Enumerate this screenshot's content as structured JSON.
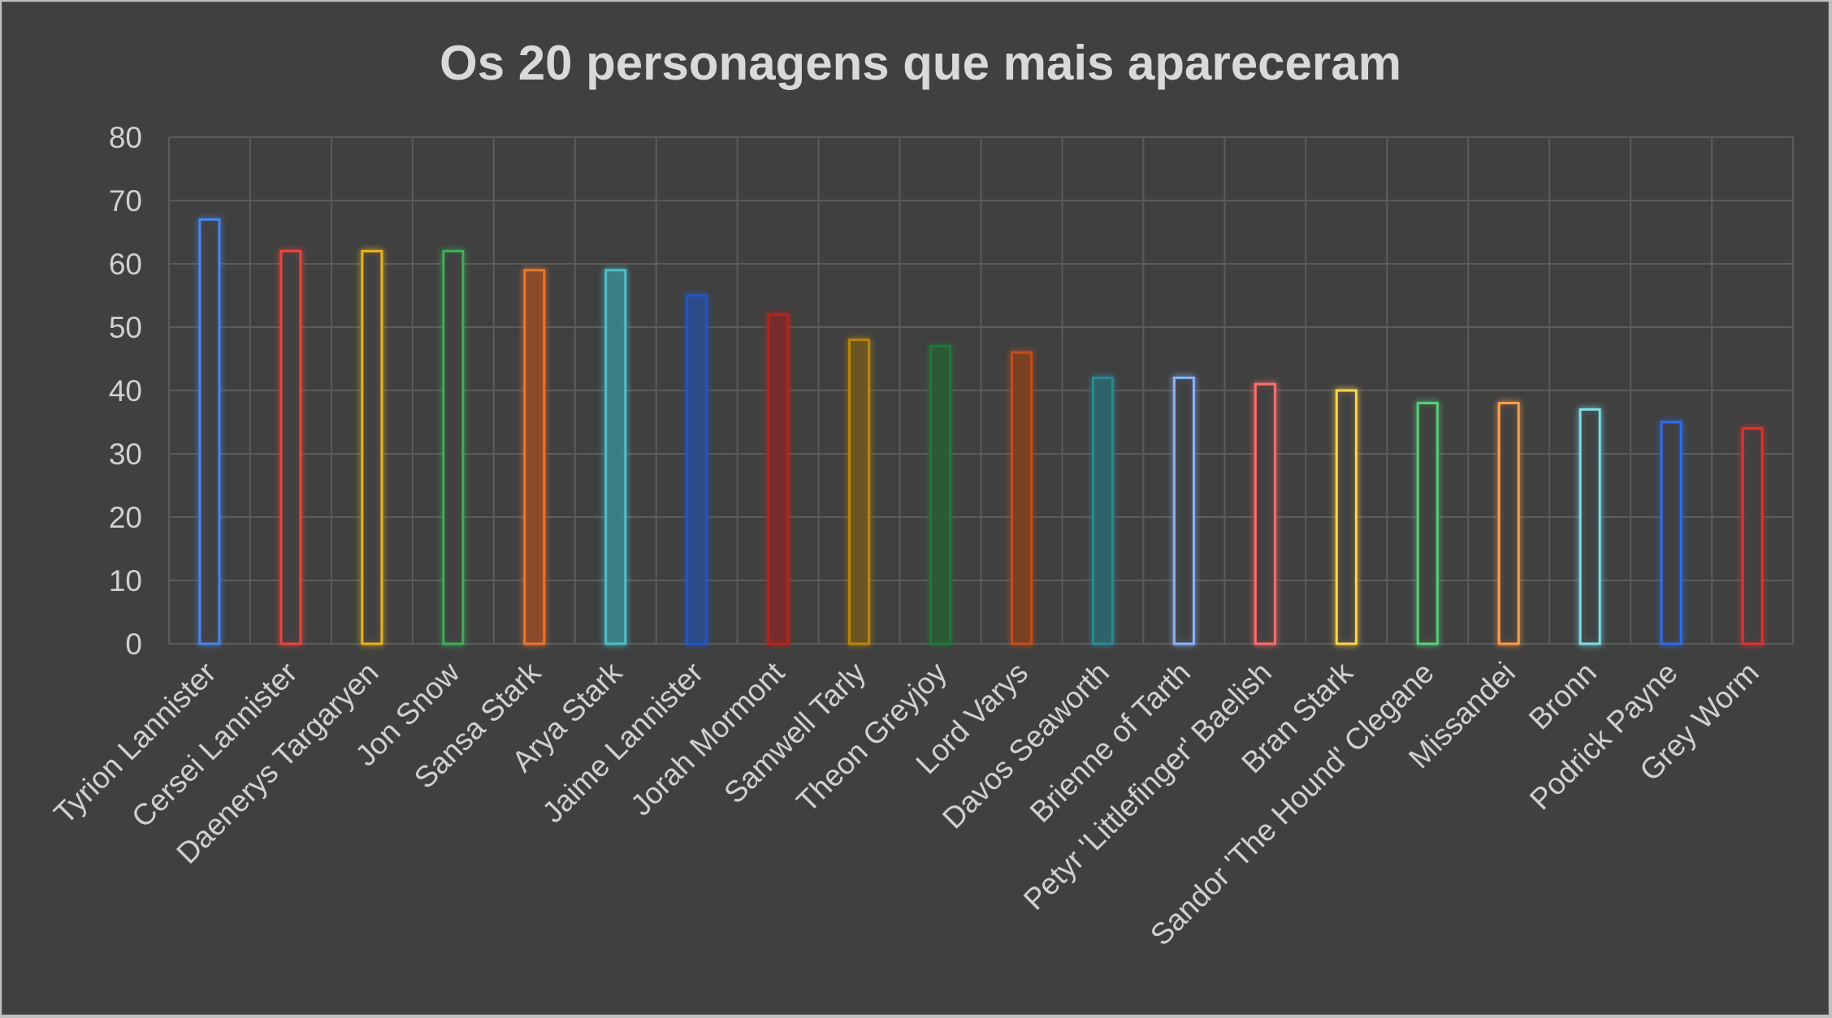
{
  "chart_data": {
    "type": "bar",
    "title": "Os 20 personagens que mais apareceram",
    "xlabel": "",
    "ylabel": "",
    "ylim": [
      0,
      80
    ],
    "yticks": [
      0,
      10,
      20,
      30,
      40,
      50,
      60,
      70,
      80
    ],
    "grid": true,
    "legend": "none",
    "categories": [
      "Tyrion Lannister",
      "Cersei Lannister",
      "Daenerys Targaryen",
      "Jon Snow",
      "Sansa Stark",
      "Arya Stark",
      "Jaime Lannister",
      "Jorah Mormont",
      "Samwell Tarly",
      "Theon Greyjoy",
      "Lord Varys",
      "Davos Seaworth",
      "Brienne of Tarth",
      "Petyr 'Littlefinger' Baelish",
      "Bran Stark",
      "Sandor 'The Hound' Clegane",
      "Missandei",
      "Bronn",
      "Podrick Payne",
      "Grey Worm"
    ],
    "values": [
      67,
      62,
      62,
      62,
      59,
      59,
      55,
      52,
      48,
      47,
      46,
      42,
      42,
      41,
      40,
      38,
      38,
      37,
      35,
      34
    ],
    "bar_colors": [
      "#4a86e8",
      "#e8463f",
      "#e8b41a",
      "#3fae5a",
      "#e8772e",
      "#4dc0c8",
      "#2457c4",
      "#b3261e",
      "#b8860b",
      "#1f7a3a",
      "#c0501f",
      "#2b8a94",
      "#8ab4f8",
      "#ff6e6e",
      "#ffd54f",
      "#57d27a",
      "#ffa04a",
      "#7fdde6",
      "#2f6ee8",
      "#e03030"
    ],
    "bar_fill_colors": [
      "#404040",
      "#404040",
      "#404040",
      "#404040",
      "#8a4a2a",
      "#3a7f85",
      "#2a4b8a",
      "#7a2a2a",
      "#6a5520",
      "#2a5a35",
      "#7a3f20",
      "#2f6368",
      "#404040",
      "#404040",
      "#404040",
      "#404040",
      "#404040",
      "#404040",
      "#404040",
      "#404040"
    ]
  }
}
